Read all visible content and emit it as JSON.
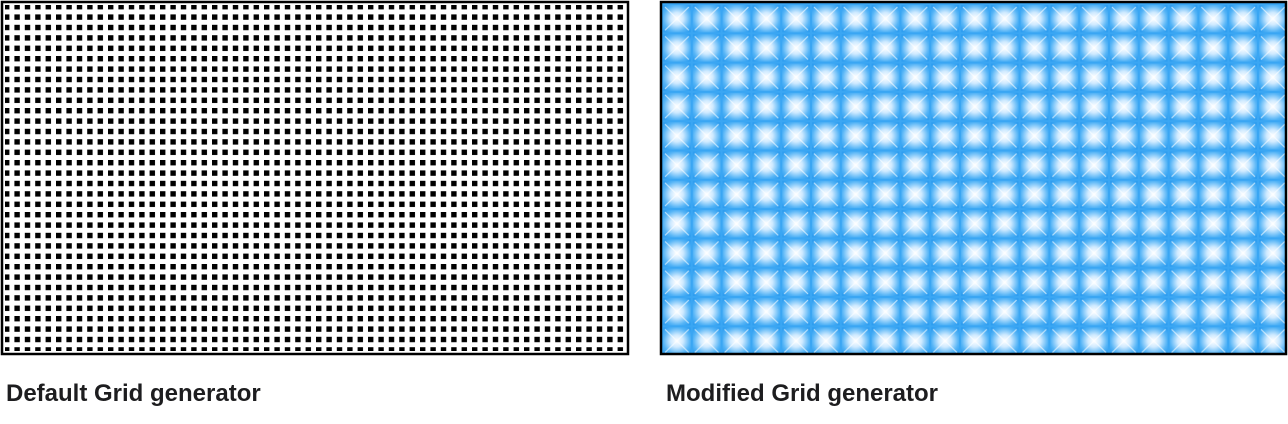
{
  "panels": [
    {
      "caption": "Default Grid generator"
    },
    {
      "caption": "Modified Grid generator"
    }
  ]
}
